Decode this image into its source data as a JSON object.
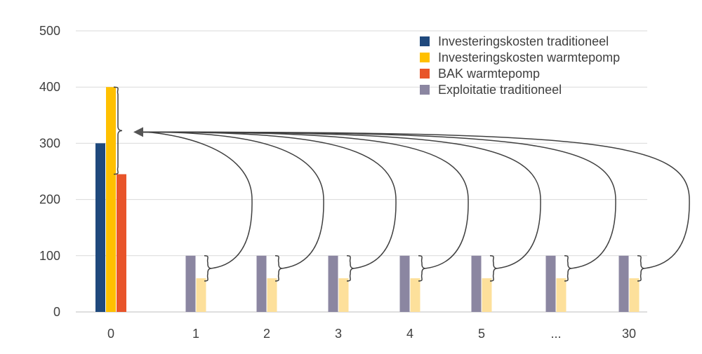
{
  "chart_data": {
    "type": "bar",
    "categories": [
      "0",
      "1",
      "2",
      "3",
      "4",
      "5",
      "...",
      "30"
    ],
    "ylim": [
      0,
      500
    ],
    "yticks": [
      0,
      100,
      200,
      300,
      400,
      500
    ],
    "grid": true,
    "legend_position": "top-right",
    "series": [
      {
        "name": "Investeringskosten traditioneel",
        "color": "#1f497d",
        "values": [
          300,
          null,
          null,
          null,
          null,
          null,
          null,
          null
        ]
      },
      {
        "name": "Investeringskosten warmtepomp",
        "color": "#ffc000",
        "values": [
          400,
          null,
          null,
          null,
          null,
          null,
          null,
          null
        ]
      },
      {
        "name": "BAK warmtepomp",
        "color": "#e8542a",
        "values": [
          245,
          null,
          null,
          null,
          null,
          null,
          null,
          null
        ]
      },
      {
        "name": "Exploitatie traditioneel",
        "color": "#8b86a1",
        "values": [
          null,
          100,
          100,
          100,
          100,
          100,
          100,
          100
        ]
      },
      {
        "name": "",
        "color": "#fde09b",
        "values": [
          null,
          60,
          60,
          60,
          60,
          60,
          60,
          60
        ]
      }
    ],
    "annotations": {
      "type": "curly-brace-arrows",
      "description_free": true
    }
  }
}
